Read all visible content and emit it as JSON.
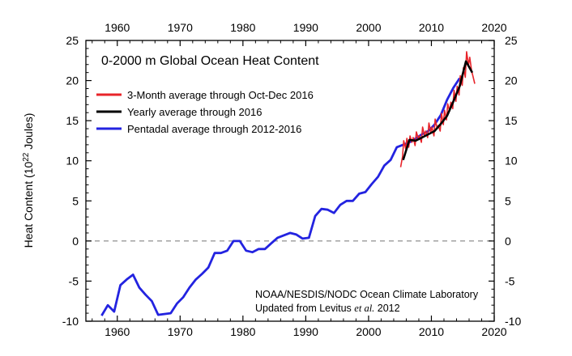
{
  "chart_data": {
    "type": "line",
    "title": "0-2000 m Global Ocean Heat Content",
    "ylabel_main": "Heat Content (10",
    "ylabel_sup": "22",
    "ylabel_end": " Joules)",
    "xlim": [
      1955,
      2020
    ],
    "ylim": [
      -10,
      25
    ],
    "x_ticks": [
      1960,
      1970,
      1980,
      1990,
      2000,
      2010,
      2020
    ],
    "y_ticks": [
      -10,
      -5,
      0,
      5,
      10,
      15,
      20,
      25
    ],
    "zero_line": {
      "value": 0,
      "style": "dashed",
      "color": "#9a9a9a"
    },
    "legend_position": "top-left",
    "credits": {
      "line1": "NOAA/NESDIS/NODC Ocean Climate Laboratory",
      "line2_prefix": "Updated from Levitus ",
      "line2_italic": "et al.",
      "line2_suffix": " 2012"
    },
    "series": [
      {
        "name": "3-Month average through Oct-Dec 2016",
        "color": "#e8242a",
        "x": [
          2005.1,
          2005.4,
          2005.6,
          2005.9,
          2006.1,
          2006.4,
          2006.6,
          2006.9,
          2007.1,
          2007.4,
          2007.6,
          2007.9,
          2008.1,
          2008.4,
          2008.6,
          2008.9,
          2009.1,
          2009.4,
          2009.6,
          2009.9,
          2010.1,
          2010.4,
          2010.6,
          2010.9,
          2011.1,
          2011.4,
          2011.6,
          2011.9,
          2012.1,
          2012.4,
          2012.6,
          2012.9,
          2013.1,
          2013.4,
          2013.6,
          2013.9,
          2014.1,
          2014.4,
          2014.6,
          2014.9,
          2015.1,
          2015.4,
          2015.6,
          2015.9,
          2016.1,
          2016.4,
          2016.6,
          2016.9
        ],
        "values": [
          9.2,
          10.5,
          12.5,
          11.5,
          12.8,
          11.7,
          13.1,
          12.3,
          12.9,
          11.9,
          13.6,
          12.8,
          13.1,
          12.3,
          14.2,
          13.2,
          13.7,
          12.9,
          14.7,
          13.6,
          14.2,
          13.1,
          15.2,
          14.1,
          14.4,
          13.7,
          15.9,
          14.5,
          16.3,
          15.1,
          17.1,
          16.2,
          17.3,
          16.5,
          18.8,
          17.4,
          19.3,
          18.2,
          20.6,
          19.4,
          21.6,
          20.4,
          23.6,
          21.9,
          22.9,
          21.2,
          20.6,
          19.6
        ]
      },
      {
        "name": "Yearly average through 2016",
        "color": "#000000",
        "x": [
          2005.5,
          2006.5,
          2007.5,
          2008.5,
          2009.5,
          2010.5,
          2011.5,
          2012.5,
          2013.5,
          2014.5,
          2015.5,
          2016.5
        ],
        "values": [
          10.1,
          12.6,
          12.5,
          12.9,
          13.3,
          13.7,
          14.6,
          15.6,
          17.4,
          19.3,
          22.4,
          21.0
        ]
      },
      {
        "name": "Pentadal average through 2012-2016",
        "color": "#2323e0",
        "x": [
          1957.5,
          1958.5,
          1959.5,
          1960.5,
          1961.5,
          1962.5,
          1963.5,
          1964.5,
          1965.5,
          1966.5,
          1967.5,
          1968.5,
          1969.5,
          1970.5,
          1971.5,
          1972.5,
          1973.5,
          1974.5,
          1975.5,
          1976.5,
          1977.5,
          1978.5,
          1979.5,
          1980.5,
          1981.5,
          1982.5,
          1983.5,
          1984.5,
          1985.5,
          1986.5,
          1987.5,
          1988.5,
          1989.5,
          1990.5,
          1991.5,
          1992.5,
          1993.5,
          1994.5,
          1995.5,
          1996.5,
          1997.5,
          1998.5,
          1999.5,
          2000.5,
          2001.5,
          2002.5,
          2003.5,
          2004.5,
          2005.5,
          2006.5,
          2007.5,
          2008.5,
          2009.5,
          2010.5,
          2011.5,
          2012.5,
          2013.5,
          2014.5
        ],
        "values": [
          -9.3,
          -8.0,
          -8.8,
          -5.5,
          -4.8,
          -4.2,
          -5.8,
          -6.7,
          -7.5,
          -9.2,
          -9.1,
          -9.0,
          -7.8,
          -7.0,
          -5.8,
          -4.8,
          -4.1,
          -3.3,
          -1.5,
          -1.5,
          -1.2,
          0.0,
          0.0,
          -1.2,
          -1.4,
          -1.0,
          -1.0,
          -0.3,
          0.4,
          0.7,
          1.0,
          0.8,
          0.3,
          0.4,
          3.1,
          4.0,
          3.9,
          3.5,
          4.5,
          5.0,
          5.0,
          5.9,
          6.1,
          7.1,
          8.0,
          9.4,
          10.1,
          11.7,
          12.0,
          12.3,
          12.8,
          13.3,
          13.7,
          14.5,
          15.7,
          17.6,
          19.1,
          20.3
        ]
      }
    ]
  }
}
